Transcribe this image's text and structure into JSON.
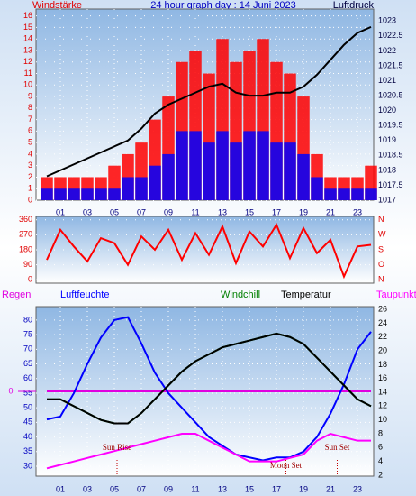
{
  "chart_data": [
    {
      "type": "line",
      "title": "24 hour graph day : 14 Juni 2023",
      "y_label": "Windstärke",
      "y2_label": "Luftdruck",
      "x": [
        0,
        1,
        2,
        3,
        4,
        5,
        6,
        7,
        8,
        9,
        10,
        11,
        12,
        13,
        14,
        15,
        16,
        17,
        18,
        19,
        20,
        21,
        22,
        23,
        24
      ],
      "xlim": [
        -0.8,
        24.2
      ],
      "xticks": [
        {
          "value": 1,
          "label": "01"
        },
        {
          "value": 3,
          "label": "03"
        },
        {
          "value": 5,
          "label": "05"
        },
        {
          "value": 7,
          "label": "07"
        },
        {
          "value": 9,
          "label": "09"
        },
        {
          "value": 11,
          "label": "11"
        },
        {
          "value": 13,
          "label": "13"
        },
        {
          "value": 15,
          "label": "15"
        },
        {
          "value": 17,
          "label": "17"
        },
        {
          "value": 19,
          "label": "19"
        },
        {
          "value": 21,
          "label": "21"
        },
        {
          "value": 23,
          "label": "23"
        }
      ],
      "ylim": [
        0,
        16.6
      ],
      "yticks": [
        0,
        1,
        2,
        3,
        4,
        5,
        6,
        7,
        8,
        9,
        10,
        11,
        12,
        13,
        14,
        15,
        16
      ],
      "ytick_color": "#e00000",
      "y2lim": [
        1017,
        1023.4
      ],
      "y2ticks": [
        1017,
        1017.5,
        1018,
        1018.5,
        1019,
        1019.5,
        1020,
        1020.5,
        1021,
        1021.5,
        1022,
        1022.5,
        1023
      ],
      "y2tick_color": "#000040",
      "grid": true,
      "series": [
        {
          "color": "#ff0000",
          "mark": "bar",
          "values": [
            2,
            2,
            2,
            2,
            2,
            3,
            4,
            5,
            7,
            9,
            12,
            13,
            11,
            14,
            12,
            13,
            14,
            12,
            11,
            9,
            4,
            2,
            2,
            2,
            3
          ]
        },
        {
          "color": "#0000ff",
          "mark": "bar",
          "values": [
            1,
            1,
            1,
            1,
            1,
            1,
            2,
            2,
            3,
            4,
            6,
            6,
            5,
            6,
            5,
            6,
            6,
            5,
            5,
            4,
            2,
            1,
            1,
            1,
            1
          ]
        },
        {
          "color": "#000000",
          "mark": "line",
          "axis": "y2",
          "values": [
            1017.8,
            1018,
            1018.2,
            1018.4,
            1018.6,
            1018.8,
            1019,
            1019.4,
            1019.9,
            1020.2,
            1020.4,
            1020.6,
            1020.8,
            1020.9,
            1020.6,
            1020.5,
            1020.5,
            1020.6,
            1020.6,
            1020.8,
            1021.2,
            1021.7,
            1022.2,
            1022.6,
            1022.8
          ]
        }
      ]
    },
    {
      "type": "line",
      "x": [
        0,
        1,
        2,
        3,
        4,
        5,
        6,
        7,
        8,
        9,
        10,
        11,
        12,
        13,
        14,
        15,
        16,
        17,
        18,
        19,
        20,
        21,
        22,
        23,
        24
      ],
      "xlim": [
        -0.8,
        24.2
      ],
      "ylim": [
        -20,
        380
      ],
      "yticks": [
        0,
        90,
        180,
        270,
        360
      ],
      "ytick_color": "#e00000",
      "y2lim": [
        -20,
        380
      ],
      "y2ticks": [
        {
          "value": 360,
          "label": "N"
        },
        {
          "value": 270,
          "label": "W"
        },
        {
          "value": 180,
          "label": "S"
        },
        {
          "value": 90,
          "label": "O"
        },
        {
          "value": 0,
          "label": "N"
        }
      ],
      "y2tick_color": "#e00000",
      "grid": true,
      "series": [
        {
          "color": "#ff0000",
          "mark": "line",
          "values": [
            120,
            300,
            200,
            110,
            250,
            220,
            90,
            260,
            180,
            300,
            120,
            280,
            150,
            320,
            100,
            290,
            200,
            330,
            130,
            310,
            160,
            240,
            20,
            200,
            210
          ]
        }
      ]
    },
    {
      "type": "line",
      "x": [
        0,
        1,
        2,
        3,
        4,
        5,
        6,
        7,
        8,
        9,
        10,
        11,
        12,
        13,
        14,
        15,
        16,
        17,
        18,
        19,
        20,
        21,
        22,
        23,
        24
      ],
      "xlim": [
        -0.8,
        24.2
      ],
      "xticks": [
        {
          "value": 1,
          "label": "01"
        },
        {
          "value": 3,
          "label": "03"
        },
        {
          "value": 5,
          "label": "05"
        },
        {
          "value": 7,
          "label": "07"
        },
        {
          "value": 9,
          "label": "09"
        },
        {
          "value": 11,
          "label": "11"
        },
        {
          "value": 13,
          "label": "13"
        },
        {
          "value": 15,
          "label": "15"
        },
        {
          "value": 17,
          "label": "17"
        },
        {
          "value": 19,
          "label": "19"
        },
        {
          "value": 21,
          "label": "21"
        },
        {
          "value": 23,
          "label": "23"
        }
      ],
      "ylim": [
        26.6,
        84.6
      ],
      "yticks": [
        30,
        35,
        40,
        45,
        50,
        55,
        60,
        65,
        70,
        75,
        80
      ],
      "ytick_color": "#0000c0",
      "y2lim": [
        1.87,
        26.4
      ],
      "y2ticks": [
        2,
        4,
        6,
        8,
        10,
        12,
        14,
        16,
        18,
        20,
        22,
        24,
        26
      ],
      "y2tick_color": "#000000",
      "y3lim": [
        -1,
        1
      ],
      "y3ticks": [
        0
      ],
      "y3tick_color": "#e000e0",
      "grid": true,
      "series": [
        {
          "name": "Regen",
          "color": "#e000e0",
          "mark": "line",
          "axis": "y3",
          "values": [
            0,
            0,
            0,
            0,
            0,
            0,
            0,
            0,
            0,
            0,
            0,
            0,
            0,
            0,
            0,
            0,
            0,
            0,
            0,
            0,
            0,
            0,
            0,
            0,
            0
          ]
        },
        {
          "name": "Luftfeuchte",
          "color": "#0000ff",
          "mark": "line",
          "values": [
            46,
            47,
            55,
            65,
            74,
            80,
            81,
            72,
            62,
            55,
            50,
            45,
            40,
            37,
            34,
            33,
            32,
            33,
            33,
            35,
            40,
            48,
            58,
            70,
            76
          ]
        },
        {
          "name": "Windchill",
          "color": "#008000",
          "mark": "line",
          "axis": "y2",
          "values": [
            13,
            13,
            12,
            11,
            10,
            9.5,
            9.5,
            11,
            13,
            15,
            17,
            18.5,
            19.5,
            20.5,
            21,
            21.5,
            22,
            22.5,
            22,
            21,
            19,
            17,
            15,
            13,
            12
          ]
        },
        {
          "name": "Temperatur",
          "color": "#000000",
          "mark": "line",
          "axis": "y2",
          "values": [
            13,
            13,
            12,
            11,
            10,
            9.5,
            9.5,
            11,
            13,
            15,
            17,
            18.5,
            19.5,
            20.5,
            21,
            21.5,
            22,
            22.5,
            22,
            21,
            19,
            17,
            15,
            13,
            12
          ]
        },
        {
          "name": "Taupunkt",
          "color": "#ff00ff",
          "mark": "line",
          "axis": "y2",
          "values": [
            3,
            3.5,
            4,
            4.5,
            5,
            5.5,
            6,
            6.5,
            7,
            7.5,
            8,
            8,
            7,
            6,
            5,
            4,
            4,
            4,
            4.5,
            5,
            7,
            8,
            7.5,
            7,
            7
          ]
        }
      ],
      "annotations": [
        {
          "text": "Sun Rise",
          "x": 5.2
        },
        {
          "text": "Moon Set",
          "x": 17.7
        },
        {
          "text": "Sun Set",
          "x": 21.5
        }
      ]
    }
  ]
}
